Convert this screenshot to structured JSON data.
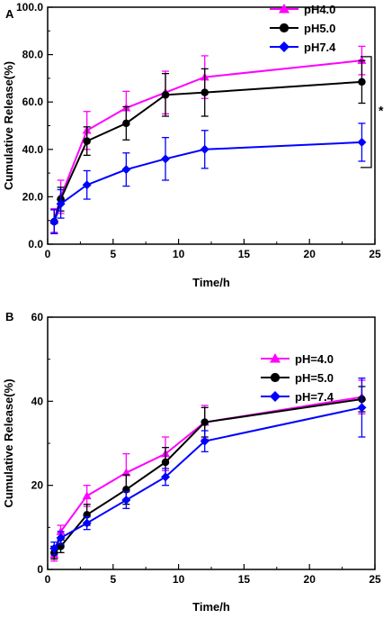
{
  "chart_data": [
    {
      "type": "line",
      "panel_label": "A",
      "xlabel": "Time/h",
      "ylabel": "Cumulative Release(%)",
      "xlim": [
        0,
        25
      ],
      "ylim": [
        0,
        100
      ],
      "xticks": [
        0,
        5,
        10,
        15,
        20,
        25
      ],
      "yticks": [
        0,
        20,
        40,
        60,
        80,
        100
      ],
      "yticks_fmt": 1,
      "xticks_fmt": 0,
      "grid": false,
      "legend_position": "top-right",
      "annotation": "*",
      "x": [
        0.5,
        1,
        3,
        6,
        9,
        12,
        24
      ],
      "series": [
        {
          "name": "pH4.0",
          "color": "#ff00ff",
          "marker": "triangle",
          "values": [
            10,
            20,
            48,
            57.5,
            64,
            70.5,
            77.5
          ],
          "errors": [
            5,
            7,
            8,
            7,
            9,
            9,
            6
          ]
        },
        {
          "name": "pH5.0",
          "color": "#000000",
          "marker": "circle",
          "values": [
            9.5,
            19,
            43.5,
            51,
            63,
            64,
            68.5
          ],
          "errors": [
            5,
            5,
            6,
            7,
            9,
            10,
            9
          ]
        },
        {
          "name": "pH7.4",
          "color": "#0000ff",
          "marker": "diamond",
          "values": [
            9.5,
            17,
            25,
            31.5,
            36,
            40,
            43
          ],
          "errors": [
            5,
            6,
            6,
            7,
            9,
            8,
            8
          ]
        }
      ]
    },
    {
      "type": "line",
      "panel_label": "B",
      "xlabel": "Time/h",
      "ylabel": "Cumulative Release(%)",
      "xlim": [
        0,
        25
      ],
      "ylim": [
        0,
        60
      ],
      "xticks": [
        0,
        5,
        10,
        15,
        20,
        25
      ],
      "yticks": [
        0,
        20,
        40,
        60
      ],
      "yticks_fmt": 0,
      "xticks_fmt": 0,
      "grid": false,
      "legend_position": "top-right",
      "x": [
        0.5,
        1,
        3,
        6,
        9,
        12,
        24
      ],
      "series": [
        {
          "name": "pH=4.0",
          "color": "#ff00ff",
          "marker": "triangle",
          "values": [
            3.5,
            9,
            17.5,
            23,
            27.5,
            35,
            41
          ],
          "errors": [
            1.5,
            1.5,
            2.5,
            4.5,
            4,
            4,
            4
          ]
        },
        {
          "name": "pH=5.0",
          "color": "#000000",
          "marker": "circle",
          "values": [
            4,
            5.5,
            13,
            19,
            25.5,
            35,
            40.5
          ],
          "errors": [
            1.5,
            1.5,
            2.5,
            3.5,
            3.5,
            3.5,
            3
          ]
        },
        {
          "name": "pH=7.4",
          "color": "#0000ff",
          "marker": "diamond",
          "values": [
            5,
            7.5,
            11,
            16.5,
            22,
            30.5,
            38.5
          ],
          "errors": [
            1.5,
            1.5,
            1.5,
            2,
            2,
            2.5,
            7
          ]
        }
      ]
    }
  ]
}
